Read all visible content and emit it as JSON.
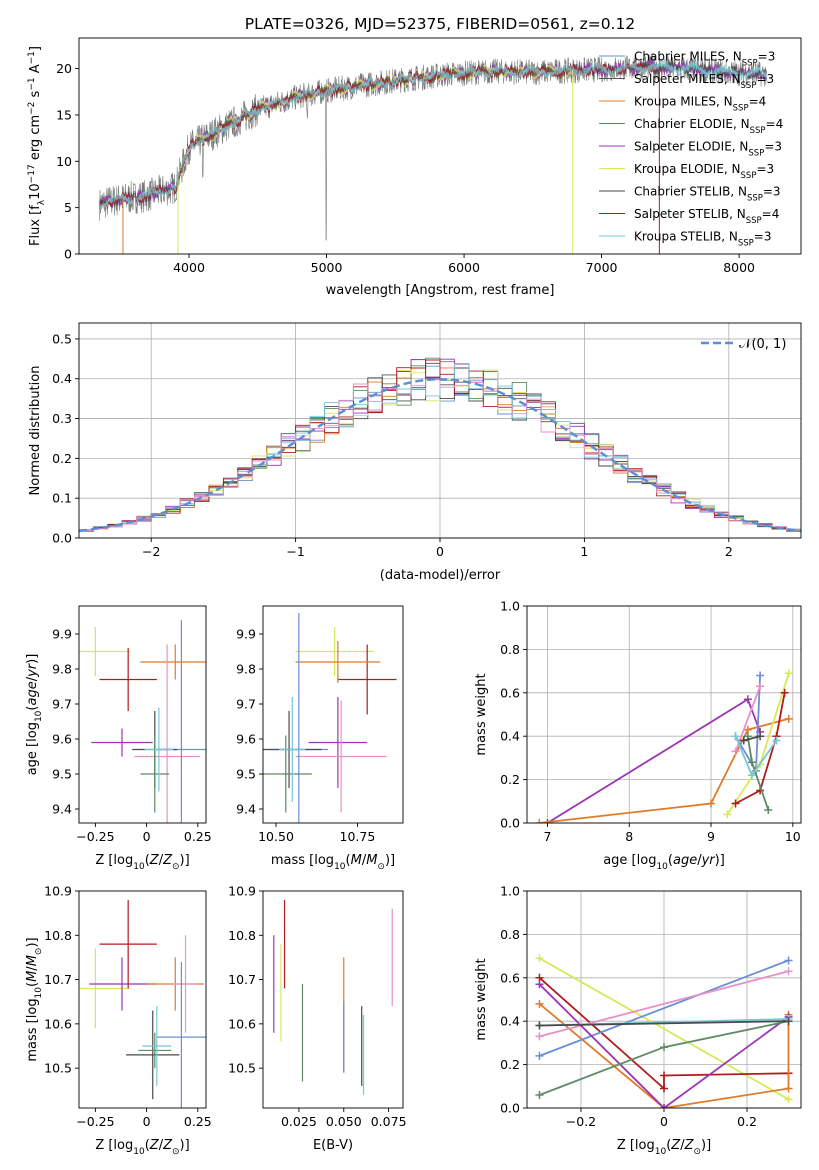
{
  "title": "PLATE=0326, MJD=52375, FIBERID=0561, z=0.12",
  "colors": {
    "Chabrier MILES": "#6a8fd4",
    "Salpeter MILES": "#555555",
    "Kroupa MILES": "#e07b2a",
    "Chabrier ELODIE": "#5d8a63",
    "Salpeter ELODIE": "#9b35b5",
    "Kroupa ELODIE": "#d8e85a",
    "Chabrier STELIB": "#4a4a4a",
    "Salpeter STELIB": "#b01c1c",
    "Kroupa STELIB": "#76c8d6",
    "pink": "#e890c8",
    "normal_curve": "#5b8ed6"
  },
  "chart_data": [
    {
      "type": "line",
      "panel": "spectrum",
      "title": "PLATE=0326, MJD=52375, FIBERID=0561, z=0.12",
      "xlabel": "wavelength [Angstrom, rest frame]",
      "ylabel": "Flux [f_λ 10^-17 erg cm^-2 s^-1 A^-1]",
      "ylabel_parts": {
        "a": "Flux [f",
        "sub": "λ",
        "b": "10",
        "sup1": "−17",
        "c": " erg cm",
        "sup2": "−2",
        "d": " s",
        "sup3": "−1",
        "e": " A",
        "sup4": "−1",
        "f": "]"
      },
      "xlim": [
        3200,
        8450
      ],
      "ylim": [
        0,
        23.3
      ],
      "xticks": [
        4000,
        5000,
        6000,
        7000,
        8000
      ],
      "yticks": [
        0,
        5,
        10,
        15,
        20
      ],
      "continuum": [
        [
          3350,
          5.4
        ],
        [
          3500,
          5.9
        ],
        [
          3700,
          6.3
        ],
        [
          3900,
          7.2
        ],
        [
          4000,
          11.5
        ],
        [
          4200,
          13.2
        ],
        [
          4500,
          15.6
        ],
        [
          4800,
          17.0
        ],
        [
          5000,
          17.6
        ],
        [
          5300,
          18.3
        ],
        [
          5600,
          18.9
        ],
        [
          5900,
          19.4
        ],
        [
          6200,
          19.7
        ],
        [
          6500,
          19.6
        ],
        [
          6800,
          19.8
        ],
        [
          7000,
          19.9
        ],
        [
          7300,
          20.2
        ],
        [
          7600,
          20.0
        ],
        [
          7900,
          19.6
        ],
        [
          8200,
          19.4
        ]
      ],
      "legend": [
        {
          "text": "Chabrier MILES, N_SSP=3",
          "main": "Chabrier MILES, N",
          "sub": "SSP",
          "tail": "=3",
          "color": "Chabrier MILES"
        },
        {
          "text": "Salpeter MILES, N_SSP=3",
          "main": "Salpeter MILES, N",
          "sub": "SSP",
          "tail": "=3",
          "color": "Salpeter MILES"
        },
        {
          "text": "Kroupa MILES, N_SSP=4",
          "main": "Kroupa MILES, N",
          "sub": "SSP",
          "tail": "=4",
          "color": "Kroupa MILES"
        },
        {
          "text": "Chabrier ELODIE, N_SSP=4",
          "main": "Chabrier ELODIE, N",
          "sub": "SSP",
          "tail": "=4",
          "color": "Chabrier ELODIE"
        },
        {
          "text": "Salpeter ELODIE, N_SSP=3",
          "main": "Salpeter ELODIE, N",
          "sub": "SSP",
          "tail": "=3",
          "color": "Salpeter ELODIE"
        },
        {
          "text": "Kroupa ELODIE, N_SSP=3",
          "main": "Kroupa ELODIE, N",
          "sub": "SSP",
          "tail": "=3",
          "color": "Kroupa ELODIE"
        },
        {
          "text": "Chabrier STELIB, N_SSP=3",
          "main": "Chabrier STELIB, N",
          "sub": "SSP",
          "tail": "=3",
          "color": "Chabrier STELIB"
        },
        {
          "text": "Salpeter STELIB, N_SSP=4",
          "main": "Salpeter STELIB, N",
          "sub": "SSP",
          "tail": "=4",
          "color": "Salpeter STELIB"
        },
        {
          "text": "Kroupa STELIB, N_SSP=3",
          "main": "Kroupa STELIB, N",
          "sub": "SSP",
          "tail": "=3",
          "color": "Kroupa STELIB"
        }
      ],
      "legend_location": "upper right"
    },
    {
      "type": "line",
      "panel": "residuals",
      "xlabel": "(data-model)/error",
      "ylabel": "Normed distribution",
      "xlim": [
        -2.5,
        2.5
      ],
      "ylim": [
        0,
        0.54
      ],
      "xticks": [
        -2,
        -1,
        0,
        1,
        2
      ],
      "yticks": [
        0.0,
        0.1,
        0.2,
        0.3,
        0.4,
        0.5
      ],
      "grid": true,
      "legend": [
        {
          "text": "𝒩(0, 1)",
          "color": "normal_curve",
          "style": "dashed"
        }
      ],
      "legend_location": "upper right",
      "curve": "normal pdf, mean 0, sigma 1"
    },
    {
      "type": "scatter",
      "panel": "age_vs_Z",
      "xlabel": "Z [log10(Z/Z_sun)]",
      "ylabel": "age [log10(age/yr)]",
      "xlim": [
        -0.33,
        0.29
      ],
      "ylim": [
        9.36,
        9.98
      ],
      "xticks": [
        -0.25,
        0.0,
        0.25
      ],
      "yticks": [
        9.4,
        9.5,
        9.6,
        9.7,
        9.8,
        9.9
      ],
      "points": [
        {
          "x": -0.25,
          "y": 9.85,
          "xerr": 0.17,
          "yerr": 0.07,
          "c": "Kroupa ELODIE"
        },
        {
          "x": -0.12,
          "y": 9.59,
          "xerr": 0.15,
          "yerr": 0.04,
          "c": "Salpeter ELODIE"
        },
        {
          "x": -0.09,
          "y": 9.77,
          "xerr": 0.14,
          "yerr": 0.09,
          "c": "Salpeter STELIB"
        },
        {
          "x": 0.14,
          "y": 9.82,
          "xerr": 0.17,
          "yerr": 0.05,
          "c": "Kroupa MILES"
        },
        {
          "x": 0.1,
          "y": 9.55,
          "xerr": 0.16,
          "yerr": 0.32,
          "c": "pink"
        },
        {
          "x": 0.17,
          "y": 9.57,
          "xerr": 0.12,
          "yerr": 0.37,
          "c": "Chabrier MILES"
        },
        {
          "x": 0.04,
          "y": 9.57,
          "xerr": 0.11,
          "yerr": 0.11,
          "c": "Chabrier STELIB"
        },
        {
          "x": 0.04,
          "y": 9.5,
          "xerr": 0.07,
          "yerr": 0.11,
          "c": "Chabrier ELODIE"
        },
        {
          "x": 0.06,
          "y": 9.57,
          "xerr": 0.07,
          "yerr": 0.12,
          "c": "Kroupa STELIB"
        }
      ]
    },
    {
      "type": "scatter",
      "panel": "age_vs_mass",
      "xlabel": "mass [log10(M/M_sun)]",
      "xlim": [
        10.46,
        10.89
      ],
      "ylim": [
        9.36,
        9.98
      ],
      "xticks": [
        10.5,
        10.75
      ],
      "xticklabels": [
        "10.50",
        "10.75"
      ],
      "yticks": [
        9.4,
        9.5,
        9.6,
        9.7,
        9.8,
        9.9
      ],
      "points": [
        {
          "x": 10.68,
          "y": 9.85,
          "xerr": 0.12,
          "yerr": 0.07,
          "c": "Kroupa ELODIE"
        },
        {
          "x": 10.69,
          "y": 9.59,
          "xerr": 0.09,
          "yerr": 0.13,
          "c": "Salpeter ELODIE"
        },
        {
          "x": 10.78,
          "y": 9.77,
          "xerr": 0.09,
          "yerr": 0.1,
          "c": "Salpeter STELIB"
        },
        {
          "x": 10.69,
          "y": 9.82,
          "xerr": 0.13,
          "yerr": 0.06,
          "c": "Kroupa MILES"
        },
        {
          "x": 10.7,
          "y": 9.55,
          "xerr": 0.14,
          "yerr": 0.16,
          "c": "pink"
        },
        {
          "x": 10.57,
          "y": 9.57,
          "xerr": 0.09,
          "yerr": 0.39,
          "c": "Chabrier MILES"
        },
        {
          "x": 10.54,
          "y": 9.57,
          "xerr": 0.1,
          "yerr": 0.11,
          "c": "Chabrier STELIB"
        },
        {
          "x": 10.53,
          "y": 9.5,
          "xerr": 0.08,
          "yerr": 0.11,
          "c": "Chabrier ELODIE"
        },
        {
          "x": 10.55,
          "y": 9.57,
          "xerr": 0.04,
          "yerr": 0.15,
          "c": "Kroupa STELIB"
        }
      ]
    },
    {
      "type": "line",
      "panel": "weight_vs_age",
      "xlabel": "age [log10(age/yr)]",
      "ylabel": "mass weight",
      "xlim": [
        6.75,
        10.1
      ],
      "ylim": [
        0,
        1
      ],
      "xticks": [
        7,
        8,
        9,
        10
      ],
      "yticks": [
        0.0,
        0.2,
        0.4,
        0.6,
        0.8,
        1.0
      ],
      "grid": true,
      "series": [
        {
          "c": "Salpeter ELODIE",
          "pts": [
            [
              7.0,
              0.0
            ],
            [
              9.45,
              0.57
            ],
            [
              9.6,
              0.42
            ]
          ]
        },
        {
          "c": "Kroupa MILES",
          "pts": [
            [
              6.9,
              0.0
            ],
            [
              9.0,
              0.09
            ],
            [
              9.45,
              0.43
            ],
            [
              9.95,
              0.48
            ]
          ]
        },
        {
          "c": "Chabrier MILES",
          "pts": [
            [
              9.3,
              0.4
            ],
            [
              9.55,
              0.24
            ],
            [
              9.6,
              0.68
            ]
          ]
        },
        {
          "c": "Kroupa ELODIE",
          "pts": [
            [
              9.2,
              0.04
            ],
            [
              9.6,
              0.27
            ],
            [
              9.95,
              0.69
            ]
          ]
        },
        {
          "c": "Salpeter STELIB",
          "pts": [
            [
              9.3,
              0.09
            ],
            [
              9.6,
              0.15
            ],
            [
              9.8,
              0.4
            ],
            [
              9.9,
              0.6
            ]
          ]
        },
        {
          "c": "Chabrier ELODIE",
          "pts": [
            [
              9.45,
              0.4
            ],
            [
              9.5,
              0.28
            ],
            [
              9.7,
              0.06
            ]
          ]
        },
        {
          "c": "pink",
          "pts": [
            [
              9.3,
              0.33
            ],
            [
              9.6,
              0.63
            ]
          ]
        },
        {
          "c": "Kroupa STELIB",
          "pts": [
            [
              9.3,
              0.4
            ],
            [
              9.5,
              0.22
            ],
            [
              9.8,
              0.38
            ]
          ]
        },
        {
          "c": "Chabrier STELIB",
          "pts": [
            [
              9.4,
              0.38
            ],
            [
              9.6,
              0.4
            ]
          ]
        }
      ]
    },
    {
      "type": "scatter",
      "panel": "mass_vs_Z",
      "xlabel": "Z [log10(Z/Z_sun)]",
      "ylabel": "mass [log10(M/M_sun)]",
      "xlim": [
        -0.33,
        0.29
      ],
      "ylim": [
        10.41,
        10.9
      ],
      "xticks": [
        -0.25,
        0.0,
        0.25
      ],
      "yticks": [
        10.5,
        10.6,
        10.7,
        10.8,
        10.9
      ],
      "points": [
        {
          "x": -0.25,
          "y": 10.68,
          "xerr": 0.17,
          "yerr": 0.09,
          "c": "Kroupa ELODIE"
        },
        {
          "x": -0.12,
          "y": 10.69,
          "xerr": 0.16,
          "yerr": 0.06,
          "c": "Salpeter ELODIE"
        },
        {
          "x": -0.09,
          "y": 10.78,
          "xerr": 0.14,
          "yerr": 0.1,
          "c": "Salpeter STELIB"
        },
        {
          "x": 0.14,
          "y": 10.69,
          "xerr": 0.14,
          "yerr": 0.06,
          "c": "Kroupa MILES"
        },
        {
          "x": 0.19,
          "y": 10.69,
          "xerr": 0.06,
          "yerr": 0.11,
          "c": "pink"
        },
        {
          "x": 0.17,
          "y": 10.57,
          "xerr": 0.12,
          "yerr": 0.17,
          "c": "Chabrier MILES"
        },
        {
          "x": 0.03,
          "y": 10.53,
          "xerr": 0.13,
          "yerr": 0.1,
          "c": "Chabrier STELIB"
        },
        {
          "x": 0.04,
          "y": 10.54,
          "xerr": 0.08,
          "yerr": 0.04,
          "c": "Chabrier ELODIE"
        },
        {
          "x": 0.05,
          "y": 10.55,
          "xerr": 0.07,
          "yerr": 0.09,
          "c": "Kroupa STELIB"
        }
      ]
    },
    {
      "type": "scatter",
      "panel": "mass_vs_EBV",
      "xlabel": "E(B-V)",
      "xlim": [
        0.005,
        0.083
      ],
      "ylim": [
        10.41,
        10.9
      ],
      "xticks": [
        0.025,
        0.05,
        0.075
      ],
      "xticklabels": [
        "0.025",
        "0.050",
        "0.075"
      ],
      "yticks": [
        10.5,
        10.6,
        10.7,
        10.8,
        10.9
      ],
      "points": [
        {
          "x": 0.015,
          "y": 10.67,
          "yerr": 0.11,
          "c": "Kroupa ELODIE"
        },
        {
          "x": 0.011,
          "y": 10.69,
          "yerr": 0.11,
          "c": "Salpeter ELODIE"
        },
        {
          "x": 0.017,
          "y": 10.78,
          "yerr": 0.1,
          "c": "Salpeter STELIB"
        },
        {
          "x": 0.05,
          "y": 10.62,
          "yerr": 0.13,
          "c": "Kroupa MILES"
        },
        {
          "x": 0.077,
          "y": 10.75,
          "yerr": 0.11,
          "c": "pink"
        },
        {
          "x": 0.05,
          "y": 10.57,
          "yerr": 0.08,
          "c": "Chabrier MILES"
        },
        {
          "x": 0.06,
          "y": 10.55,
          "yerr": 0.09,
          "c": "Chabrier STELIB"
        },
        {
          "x": 0.027,
          "y": 10.58,
          "yerr": 0.11,
          "c": "Chabrier ELODIE"
        },
        {
          "x": 0.061,
          "y": 10.53,
          "yerr": 0.09,
          "c": "Kroupa STELIB"
        }
      ]
    },
    {
      "type": "line",
      "panel": "weight_vs_Z",
      "xlabel": "Z [log10(Z/Z_sun)]",
      "ylabel": "mass weight",
      "xlim": [
        -0.33,
        0.33
      ],
      "ylim": [
        0,
        1
      ],
      "xticks": [
        -0.2,
        0.0,
        0.2
      ],
      "yticks": [
        0.0,
        0.2,
        0.4,
        0.6,
        0.8,
        1.0
      ],
      "grid": true,
      "series": [
        {
          "c": "Kroupa ELODIE",
          "pts": [
            [
              -0.3,
              0.69
            ],
            [
              0.3,
              0.04
            ]
          ]
        },
        {
          "c": "Salpeter STELIB",
          "pts": [
            [
              -0.3,
              0.6
            ],
            [
              0.0,
              0.09
            ],
            [
              0.0,
              0.15
            ],
            [
              0.3,
              0.16
            ]
          ]
        },
        {
          "c": "Kroupa MILES",
          "pts": [
            [
              -0.3,
              0.48
            ],
            [
              0.0,
              0.0
            ],
            [
              0.3,
              0.09
            ],
            [
              0.3,
              0.43
            ]
          ]
        },
        {
          "c": "Chabrier MILES",
          "pts": [
            [
              -0.3,
              0.24
            ],
            [
              0.3,
              0.68
            ]
          ]
        },
        {
          "c": "pink",
          "pts": [
            [
              -0.3,
              0.33
            ],
            [
              0.3,
              0.63
            ]
          ]
        },
        {
          "c": "Salpeter ELODIE",
          "pts": [
            [
              -0.3,
              0.57
            ],
            [
              0.0,
              0.0
            ],
            [
              0.3,
              0.42
            ]
          ]
        },
        {
          "c": "Chabrier ELODIE",
          "pts": [
            [
              -0.3,
              0.06
            ],
            [
              0.0,
              0.28
            ],
            [
              0.3,
              0.4
            ]
          ]
        },
        {
          "c": "Kroupa STELIB",
          "pts": [
            [
              -0.3,
              0.38
            ],
            [
              0.3,
              0.41
            ]
          ]
        },
        {
          "c": "Chabrier STELIB",
          "pts": [
            [
              -0.3,
              0.38
            ],
            [
              0.3,
              0.4
            ]
          ]
        }
      ]
    }
  ]
}
